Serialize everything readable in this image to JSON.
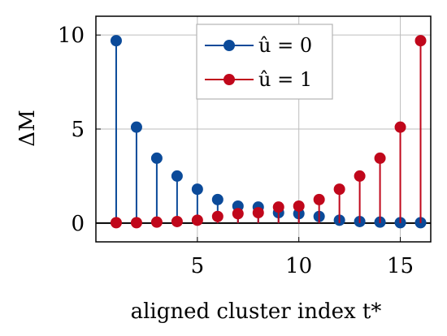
{
  "chart_data": {
    "type": "stem",
    "x": [
      1,
      2,
      3,
      4,
      5,
      6,
      7,
      8,
      9,
      10,
      11,
      12,
      13,
      14,
      15,
      16
    ],
    "xlabel": "aligned cluster index t*",
    "ylabel": "ΔM",
    "xlim": [
      0,
      16.5
    ],
    "ylim": [
      -1,
      11
    ],
    "xticks": [
      5,
      10,
      15
    ],
    "yticks": [
      0,
      5,
      10
    ],
    "grid": true,
    "legend_position": "top-center",
    "baseline": 0,
    "series": [
      {
        "name": "û = 0",
        "color": "#0b4a99",
        "values": [
          9.7,
          5.1,
          3.45,
          2.5,
          1.8,
          1.25,
          0.9,
          0.85,
          0.55,
          0.5,
          0.35,
          0.15,
          0.08,
          0.05,
          0.02,
          0.02
        ]
      },
      {
        "name": "û = 1",
        "color": "#c0071b",
        "values": [
          0.02,
          0.02,
          0.05,
          0.08,
          0.15,
          0.35,
          0.5,
          0.55,
          0.85,
          0.9,
          1.25,
          1.8,
          2.5,
          3.45,
          5.1,
          9.7
        ]
      }
    ]
  }
}
